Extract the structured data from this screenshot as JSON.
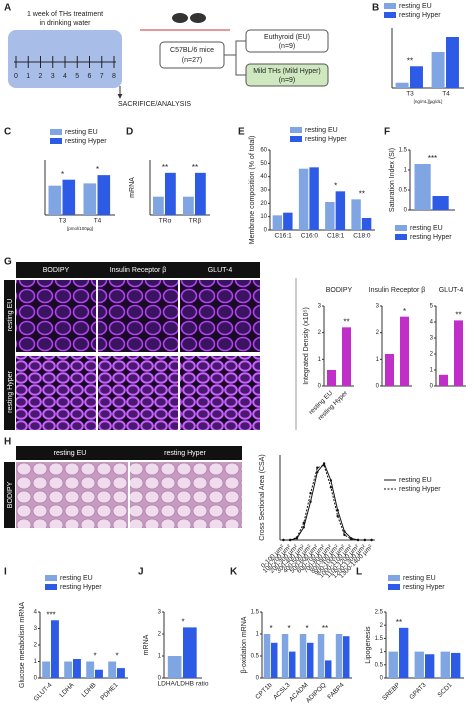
{
  "diagram": {
    "panel": "A",
    "line1": "1 week of THs treatment",
    "line2": "in drinking water",
    "days": [
      0,
      1,
      2,
      3,
      4,
      5,
      6,
      7,
      8
    ],
    "mice": "C57BL/6 mice",
    "mice_n": "(n=27)",
    "eu": "Euthyroid (EU)",
    "eu_n": "(n=9)",
    "hyper": "Mild THs (Mild Hyper)",
    "hyper_n": "(n=9)",
    "end": "SACRIFICE/ANALYSIS"
  },
  "images_g": {
    "panel": "G",
    "cols": [
      "BODIPY",
      "Insulin Receptor β",
      "GLUT-4"
    ],
    "rows": [
      "resting EU",
      "resting Hyper"
    ]
  },
  "images_h": {
    "panel": "H",
    "cols": [
      "resting EU",
      "resting Hyper"
    ],
    "row": "BODIPY"
  },
  "chart_data": [
    {
      "panel": "B",
      "type": "bar",
      "categories": [
        "T3",
        "T4"
      ],
      "x_note": "[ng/mL][µg/dL]",
      "series": [
        {
          "name": "resting EU",
          "color": "#7fa6e3",
          "values": [
            0.7,
            4.8
          ]
        },
        {
          "name": "resting Hyper",
          "color": "#2e5be6",
          "values": [
            2.9,
            6.8
          ]
        }
      ],
      "ylim": [
        0,
        8
      ],
      "legend": "top",
      "annotations": [
        {
          "category": 0,
          "text": "**"
        }
      ]
    },
    {
      "panel": "C",
      "type": "bar",
      "categories": [
        "T3",
        "T4"
      ],
      "x_note": "[pmol/100µg]",
      "series": [
        {
          "name": "resting EU",
          "color": "#7fa6e3",
          "values": [
            0.64,
            0.69
          ]
        },
        {
          "name": "resting Hyper",
          "color": "#2e5be6",
          "values": [
            0.77,
            0.87
          ]
        }
      ],
      "ylim": [
        0,
        1.2
      ],
      "legend": "top",
      "annotations": [
        {
          "category": 0,
          "text": "*"
        },
        {
          "category": 1,
          "text": "*"
        }
      ]
    },
    {
      "panel": "D",
      "type": "bar",
      "ylabel": "mRNA",
      "categories": [
        "TRα",
        "TRβ"
      ],
      "series": [
        {
          "name": "resting EU",
          "color": "#7fa6e3",
          "values": [
            1.0,
            1.0
          ]
        },
        {
          "name": "resting Hyper",
          "color": "#2e5be6",
          "values": [
            2.3,
            2.3
          ]
        }
      ],
      "ylim": [
        0,
        3
      ],
      "annotations": [
        {
          "category": 0,
          "text": "**"
        },
        {
          "category": 1,
          "text": "**"
        }
      ]
    },
    {
      "panel": "E",
      "type": "bar",
      "ylabel": "Membrane composition (% of total)",
      "categories": [
        "C16:1",
        "C16:0",
        "C18:1",
        "C18:0"
      ],
      "series": [
        {
          "name": "resting EU",
          "color": "#7fa6e3",
          "values": [
            11,
            46,
            21,
            23
          ]
        },
        {
          "name": "resting Hyper",
          "color": "#2e5be6",
          "values": [
            13,
            47,
            29,
            9
          ]
        }
      ],
      "ylim": [
        0,
        60
      ],
      "yticks": [
        0,
        10,
        20,
        30,
        40,
        50,
        60
      ],
      "legend": "top",
      "annotations": [
        {
          "category": 2,
          "text": "*"
        },
        {
          "category": 3,
          "text": "**"
        }
      ]
    },
    {
      "panel": "F",
      "type": "bar",
      "ylabel": "Saturation Index (SI)",
      "categories": [
        null
      ],
      "series": [
        {
          "name": "resting EU",
          "color": "#7fa6e3",
          "values": [
            1.15
          ]
        },
        {
          "name": "resting Hyper",
          "color": "#2e5be6",
          "values": [
            0.35
          ]
        }
      ],
      "ylim": [
        0,
        1.5
      ],
      "yticks": [
        0,
        0.5,
        1,
        1.5
      ],
      "legend": "bottom",
      "annotations": [
        {
          "category": 0,
          "text": "***"
        }
      ]
    },
    {
      "type": "bar",
      "title": "BODIPY",
      "ylabel": "Integrated Density (x10⁵)",
      "categories": [
        "resting EU",
        "resting Hyper"
      ],
      "values": [
        0.6,
        2.2
      ],
      "color": "#c030c8",
      "ylim": [
        0,
        3
      ],
      "yticks": [
        0,
        1,
        2,
        3
      ],
      "annotations": [
        {
          "category": 1,
          "text": "**"
        }
      ]
    },
    {
      "type": "bar",
      "title": "Insulin Receptor β",
      "categories": [
        null,
        null
      ],
      "values": [
        1.2,
        2.6
      ],
      "color": "#c030c8",
      "ylim": [
        0,
        3
      ],
      "yticks": [
        0,
        1,
        2,
        3
      ],
      "annotations": [
        {
          "category": 1,
          "text": "*"
        }
      ]
    },
    {
      "type": "bar",
      "title": "GLUT-4",
      "categories": [
        null,
        null
      ],
      "values": [
        0.7,
        4.1
      ],
      "color": "#c030c8",
      "ylim": [
        0,
        5
      ],
      "yticks": [
        0,
        1,
        2,
        3,
        4,
        5
      ],
      "annotations": [
        {
          "category": 1,
          "text": "**"
        }
      ]
    },
    {
      "type": "line",
      "ylabel": "Cross Sectional Area (CSA)",
      "categories": [
        "0-100 µm²",
        "100-200 µm²",
        "200-300 µm²",
        "300-400 µm²",
        "400-500 µm²",
        "500-600 µm²",
        "600-700 µm²",
        "700-800 µm²",
        "800-900 µm²",
        "900-1000 µm²",
        "1000-1100 µm²",
        "1100-1200 µm²",
        "1200-1300 µm²",
        "1300-1400 µm²"
      ],
      "series": [
        {
          "name": "resting EU",
          "color": "#111111",
          "values": [
            0,
            0,
            2,
            15,
            45,
            80,
            90,
            70,
            35,
            10,
            2,
            0,
            0,
            0
          ]
        },
        {
          "name": "resting Hyper",
          "color": "#111111",
          "dashed": true,
          "values": [
            0,
            0,
            3,
            20,
            55,
            85,
            88,
            62,
            28,
            6,
            1,
            0,
            0,
            0
          ]
        }
      ],
      "ylim": [
        0,
        100
      ],
      "legend": "right"
    },
    {
      "panel": "I",
      "type": "bar",
      "ylabel": "Glucose metabolism mRNA",
      "categories": [
        "GLUT-4",
        "LDHA",
        "LDHB",
        "PDHE1"
      ],
      "series": [
        {
          "name": "resting EU",
          "color": "#7fa6e3",
          "values": [
            1,
            1,
            1,
            1
          ]
        },
        {
          "name": "resting Hyper",
          "color": "#2e5be6",
          "values": [
            3.5,
            1.15,
            0.5,
            0.6
          ]
        }
      ],
      "ylim": [
        0,
        4
      ],
      "yticks": [
        0,
        1,
        2,
        3,
        4
      ],
      "legend": "top",
      "annotations": [
        {
          "category": 0,
          "text": "***"
        },
        {
          "category": 2,
          "text": "*"
        },
        {
          "category": 3,
          "text": "*"
        }
      ]
    },
    {
      "panel": "J",
      "type": "bar",
      "ylabel": "mRNA",
      "categories": [
        "LDHA/LDHB ratio"
      ],
      "series": [
        {
          "name": "resting EU",
          "color": "#7fa6e3",
          "values": [
            1
          ]
        },
        {
          "name": "resting Hyper",
          "color": "#2e5be6",
          "values": [
            2.3
          ]
        }
      ],
      "ylim": [
        0,
        3
      ],
      "yticks": [
        0,
        1,
        2,
        3
      ],
      "annotations": [
        {
          "category": 0,
          "text": "*"
        }
      ]
    },
    {
      "panel": "K",
      "type": "bar",
      "ylabel": "β-oxidation mRNA",
      "categories": [
        "CPT1b",
        "ACSL3",
        "ACADM",
        "ADIPOQ",
        "FABP4"
      ],
      "series": [
        {
          "name": "resting EU",
          "color": "#7fa6e3",
          "values": [
            1,
            1,
            1,
            1,
            1
          ]
        },
        {
          "name": "resting Hyper",
          "color": "#2e5be6",
          "values": [
            0.8,
            0.6,
            0.8,
            0.4,
            0.95
          ]
        }
      ],
      "ylim": [
        0,
        1.5
      ],
      "yticks": [
        0,
        0.5,
        1,
        1.5
      ],
      "annotations": [
        {
          "category": 0,
          "text": "*"
        },
        {
          "category": 1,
          "text": "*"
        },
        {
          "category": 2,
          "text": "*"
        },
        {
          "category": 3,
          "text": "**"
        }
      ]
    },
    {
      "panel": "L",
      "type": "bar",
      "ylabel": "Lipogenesis",
      "categories": [
        "SREBP",
        "GPAT3",
        "SCD1"
      ],
      "series": [
        {
          "name": "resting EU",
          "color": "#7fa6e3",
          "values": [
            1,
            1,
            1
          ]
        },
        {
          "name": "resting Hyper",
          "color": "#2e5be6",
          "values": [
            1.9,
            0.9,
            0.95
          ]
        }
      ],
      "ylim": [
        0,
        2.5
      ],
      "yticks": [
        0,
        0.5,
        1,
        1.5,
        2,
        2.5
      ],
      "legend": "top",
      "annotations": [
        {
          "category": 0,
          "text": "**"
        }
      ]
    }
  ]
}
